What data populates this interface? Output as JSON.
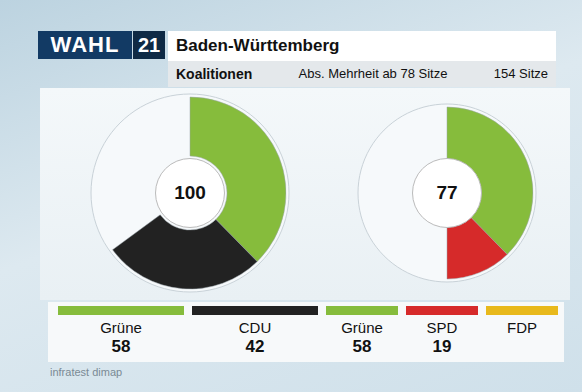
{
  "header": {
    "logo": "WAHL",
    "logo_number": "21",
    "title": "Baden-Württemberg",
    "subtitle": "Koalitionen",
    "majority": "Abs. Mehrheit ab 78 Sitze",
    "seats": "154 Sitze"
  },
  "chart_data": [
    {
      "type": "donut",
      "total": 100,
      "range": [
        0,
        154
      ],
      "categories": [
        "Grüne",
        "CDU"
      ],
      "values": [
        58,
        42
      ],
      "colors": [
        "#86bc3c",
        "#222222"
      ]
    },
    {
      "type": "donut",
      "total": 77,
      "range": [
        0,
        154
      ],
      "categories": [
        "Grüne",
        "SPD",
        "FDP"
      ],
      "values": [
        58,
        19,
        null
      ],
      "colors": [
        "#86bc3c",
        "#d62a2a",
        "#e8b91c"
      ]
    }
  ],
  "source": "infratest dimap"
}
